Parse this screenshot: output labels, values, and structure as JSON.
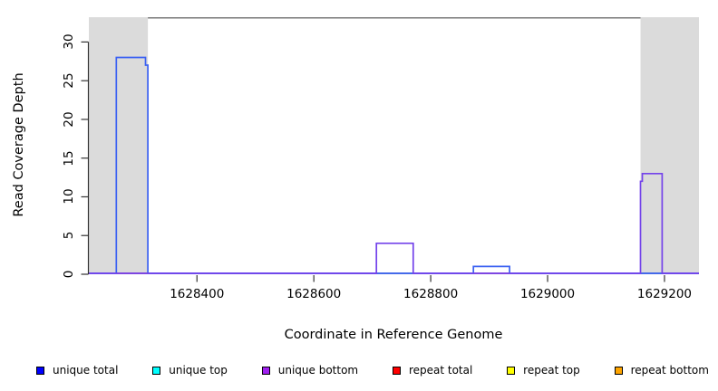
{
  "titles": {
    "y_axis": "Read Coverage Depth",
    "x_axis": "Coordinate in Reference Genome"
  },
  "colors": {
    "shaded_band": "#DBDBDB",
    "frame_top": "#787878",
    "axis": "#333333",
    "baseline_blend": "#7B5CF0",
    "unique_total_line": "#3B61F2",
    "unique_bottom_line": "#7443EA",
    "repeat_total_at_zero": "#E8445A",
    "overlap_green_at_zero": "#76C876"
  },
  "chart_data": {
    "type": "line",
    "subtype": "step-coverage",
    "title": "",
    "xlabel": "Coordinate in Reference Genome",
    "ylabel": "Read Coverage Depth",
    "xlim": [
      1628215,
      1629259
    ],
    "ylim": [
      0,
      33.2
    ],
    "x_ticks": [
      1628400,
      1628600,
      1628800,
      1629000,
      1629200
    ],
    "y_ticks": [
      0,
      5,
      10,
      15,
      20,
      25,
      30
    ],
    "grid": false,
    "legend_position": "bottom",
    "shaded_regions": [
      {
        "x0": 1628215,
        "x1": 1628316
      },
      {
        "x0": 1629159,
        "x1": 1629259
      }
    ],
    "series": [
      {
        "name": "unique total",
        "legend_color": "#0000FF",
        "points": [
          [
            1628215,
            0
          ],
          [
            1628262,
            0
          ],
          [
            1628262,
            28
          ],
          [
            1628312,
            28
          ],
          [
            1628312,
            27
          ],
          [
            1628316,
            27
          ],
          [
            1628316,
            0
          ],
          [
            1628873,
            0
          ],
          [
            1628873,
            1
          ],
          [
            1628935,
            1
          ],
          [
            1628935,
            0
          ],
          [
            1629259,
            0
          ]
        ]
      },
      {
        "name": "unique top",
        "legend_color": "#00FFFF",
        "points": [
          [
            1628215,
            0
          ],
          [
            1629259,
            0
          ]
        ]
      },
      {
        "name": "unique bottom",
        "legend_color": "#A020F0",
        "points": [
          [
            1628215,
            0
          ],
          [
            1628707,
            0
          ],
          [
            1628707,
            4
          ],
          [
            1628770,
            4
          ],
          [
            1628770,
            0
          ],
          [
            1629159,
            0
          ],
          [
            1629159,
            12
          ],
          [
            1629162,
            12
          ],
          [
            1629162,
            13
          ],
          [
            1629196,
            13
          ],
          [
            1629196,
            0
          ],
          [
            1629259,
            0
          ]
        ]
      },
      {
        "name": "repeat total",
        "legend_color": "#FF0000",
        "points": [
          [
            1628215,
            0
          ],
          [
            1629259,
            0
          ]
        ]
      },
      {
        "name": "repeat top",
        "legend_color": "#FFFF00",
        "points": [
          [
            1628215,
            0
          ],
          [
            1629259,
            0
          ]
        ]
      },
      {
        "name": "repeat bottom",
        "legend_color": "#FFA500",
        "points": [
          [
            1628215,
            0
          ],
          [
            1629259,
            0
          ]
        ]
      }
    ],
    "render_layers": [
      {
        "name": "baseline-blend",
        "color": "#7B5CF0",
        "width": 1.8,
        "points": [
          [
            1628215,
            0
          ],
          [
            1629259,
            0
          ]
        ]
      },
      {
        "name": "repeat-total-visible",
        "color": "#E8445A",
        "width": 1.6,
        "points": [
          [
            1628262,
            0
          ],
          [
            1628316,
            0
          ]
        ]
      },
      {
        "name": "repeat-total-visible-2",
        "color": "#E8445A",
        "width": 1.6,
        "points": [
          [
            1628873,
            0
          ],
          [
            1628935,
            0
          ]
        ]
      },
      {
        "name": "overlap-green-visible",
        "color": "#76C876",
        "width": 1.6,
        "points": [
          [
            1628707,
            0
          ],
          [
            1628770,
            0
          ]
        ]
      },
      {
        "name": "overlap-green-visible-2",
        "color": "#76C876",
        "width": 1.6,
        "points": [
          [
            1629160,
            0
          ],
          [
            1629196,
            0
          ]
        ]
      },
      {
        "name": "unique-total-line",
        "color": "#3B61F2",
        "width": 1.7,
        "points": [
          [
            1628215,
            0
          ],
          [
            1628262,
            0
          ],
          [
            1628262,
            28
          ],
          [
            1628312,
            28
          ],
          [
            1628312,
            27
          ],
          [
            1628316,
            27
          ],
          [
            1628316,
            0
          ],
          [
            1628873,
            0
          ],
          [
            1628873,
            1
          ],
          [
            1628935,
            1
          ],
          [
            1628935,
            0
          ],
          [
            1629259,
            0
          ]
        ]
      },
      {
        "name": "unique-bottom-line",
        "color": "#7443EA",
        "width": 1.7,
        "points": [
          [
            1628215,
            0
          ],
          [
            1628707,
            0
          ],
          [
            1628707,
            4
          ],
          [
            1628770,
            4
          ],
          [
            1628770,
            0
          ],
          [
            1629159,
            0
          ],
          [
            1629159,
            12
          ],
          [
            1629162,
            12
          ],
          [
            1629162,
            13
          ],
          [
            1629196,
            13
          ],
          [
            1629196,
            0
          ],
          [
            1629259,
            0
          ]
        ]
      }
    ]
  },
  "legend": {
    "items": [
      {
        "label": "unique total",
        "color": "#0000FF"
      },
      {
        "label": "unique top",
        "color": "#00FFFF"
      },
      {
        "label": "unique bottom",
        "color": "#A020F0"
      },
      {
        "label": "repeat total",
        "color": "#FF0000"
      },
      {
        "label": "repeat top",
        "color": "#FFFF00"
      },
      {
        "label": "repeat bottom",
        "color": "#FFA500"
      }
    ]
  }
}
